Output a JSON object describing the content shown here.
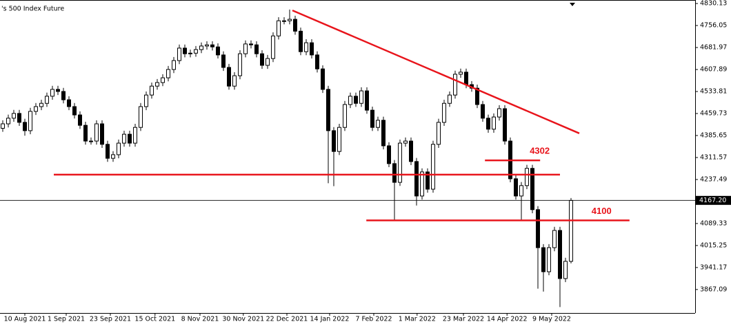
{
  "chart_data": {
    "type": "candlestick",
    "title": "'s 500 Index Future",
    "open": [
      4410,
      4425,
      4444,
      4460,
      4430,
      4402,
      4467,
      4483,
      4494,
      4518,
      4541,
      4534,
      4506,
      4483,
      4455,
      4420,
      4367,
      4367,
      4425,
      4356,
      4309,
      4321,
      4360,
      4390,
      4360,
      4413,
      4483,
      4522,
      4552,
      4564,
      4580,
      4608,
      4638,
      4680,
      4661,
      4663,
      4675,
      4687,
      4691,
      4684,
      4657,
      4615,
      4552,
      4587,
      4661,
      4694,
      4691,
      4661,
      4622,
      4645,
      4721,
      4772,
      4772,
      4777,
      4737,
      4668,
      4698,
      4657,
      4610,
      4541,
      4402,
      4332,
      4413,
      4490,
      4518,
      4494,
      4536,
      4471,
      4413,
      4437,
      4351,
      4291,
      4228,
      4360,
      4367,
      4298,
      4182,
      4263,
      4205,
      4356,
      4430,
      4494,
      4522,
      4592,
      4599,
      4557,
      4545,
      4490,
      4444,
      4407,
      4448,
      4476,
      4367,
      4240,
      4182,
      4217,
      4275,
      4136,
      4008,
      3927,
      4008,
      4066,
      3904,
      3962
    ],
    "high": [
      4437,
      4456,
      4472,
      4472,
      4442,
      4479,
      4495,
      4506,
      4530,
      4553,
      4553,
      4546,
      4518,
      4495,
      4467,
      4432,
      4379,
      4437,
      4437,
      4368,
      4333,
      4372,
      4402,
      4402,
      4425,
      4495,
      4534,
      4564,
      4576,
      4592,
      4620,
      4650,
      4692,
      4692,
      4675,
      4687,
      4699,
      4703,
      4703,
      4696,
      4669,
      4627,
      4599,
      4673,
      4706,
      4706,
      4703,
      4673,
      4657,
      4733,
      4784,
      4784,
      4810,
      4789,
      4749,
      4710,
      4710,
      4669,
      4622,
      4553,
      4414,
      4425,
      4502,
      4530,
      4530,
      4548,
      4548,
      4483,
      4449,
      4449,
      4363,
      4303,
      4372,
      4379,
      4379,
      4310,
      4275,
      4275,
      4368,
      4442,
      4506,
      4534,
      4604,
      4611,
      4611,
      4569,
      4557,
      4502,
      4456,
      4460,
      4488,
      4488,
      4379,
      4252,
      4229,
      4287,
      4287,
      4148,
      4020,
      4020,
      4078,
      4078,
      3974,
      4175
    ],
    "low": [
      4398,
      4413,
      4432,
      4418,
      4385,
      4390,
      4455,
      4471,
      4482,
      4506,
      4522,
      4494,
      4471,
      4443,
      4408,
      4355,
      4355,
      4355,
      4344,
      4297,
      4297,
      4309,
      4348,
      4348,
      4348,
      4401,
      4471,
      4510,
      4540,
      4552,
      4568,
      4596,
      4626,
      4649,
      4649,
      4651,
      4663,
      4675,
      4672,
      4645,
      4603,
      4540,
      4540,
      4575,
      4649,
      4679,
      4649,
      4610,
      4610,
      4633,
      4709,
      4760,
      4760,
      4725,
      4656,
      4656,
      4645,
      4598,
      4529,
      4225,
      4215,
      4320,
      4401,
      4478,
      4482,
      4482,
      4459,
      4401,
      4401,
      4339,
      4279,
      4100,
      4216,
      4348,
      4286,
      4150,
      4170,
      4193,
      4193,
      4344,
      4418,
      4482,
      4510,
      4580,
      4545,
      4533,
      4478,
      4432,
      4395,
      4395,
      4436,
      4355,
      4228,
      4170,
      4100,
      4205,
      4124,
      3870,
      3860,
      3915,
      3996,
      3808,
      3892,
      3955
    ],
    "close": [
      4425,
      4444,
      4460,
      4430,
      4402,
      4467,
      4483,
      4494,
      4518,
      4541,
      4534,
      4506,
      4483,
      4455,
      4420,
      4367,
      4367,
      4425,
      4356,
      4309,
      4321,
      4360,
      4390,
      4360,
      4413,
      4483,
      4522,
      4552,
      4564,
      4580,
      4608,
      4638,
      4680,
      4661,
      4663,
      4675,
      4687,
      4691,
      4684,
      4657,
      4615,
      4552,
      4587,
      4661,
      4694,
      4691,
      4661,
      4622,
      4645,
      4721,
      4772,
      4772,
      4777,
      4737,
      4668,
      4698,
      4657,
      4610,
      4541,
      4402,
      4332,
      4413,
      4490,
      4518,
      4494,
      4536,
      4471,
      4413,
      4437,
      4351,
      4291,
      4228,
      4360,
      4367,
      4298,
      4182,
      4263,
      4205,
      4356,
      4430,
      4494,
      4522,
      4592,
      4599,
      4557,
      4545,
      4490,
      4444,
      4407,
      4448,
      4476,
      4367,
      4240,
      4182,
      4217,
      4275,
      4136,
      4008,
      3927,
      4008,
      4066,
      3904,
      3962,
      4167
    ],
    "up_color": "#ffffff",
    "down_color": "#000000",
    "xlim": [
      -0.5,
      125.5
    ],
    "xticks": [
      {
        "value": 4,
        "label": "10 Aug 2021"
      },
      {
        "value": 11.5,
        "label": "1 Sep 2021"
      },
      {
        "value": 19.5,
        "label": "23 Sep 2021"
      },
      {
        "value": 27.6,
        "label": "15 Oct 2021"
      },
      {
        "value": 35.75,
        "label": "8 Nov 2021"
      },
      {
        "value": 43.6,
        "label": "30 Nov 2021"
      },
      {
        "value": 51.5,
        "label": "22 Dec 2021"
      },
      {
        "value": 59.25,
        "label": "14 Jan 2022"
      },
      {
        "value": 67.25,
        "label": "7 Feb 2022"
      },
      {
        "value": 75.1,
        "label": "1 Mar 2022"
      },
      {
        "value": 83.5,
        "label": "23 Mar 2022"
      },
      {
        "value": 91.4,
        "label": "14 Apr 2022"
      },
      {
        "value": 99.5,
        "label": "9 May 2022"
      }
    ],
    "ylim": [
      3788,
      4842
    ],
    "yticks": [
      4830.13,
      4756.05,
      4681.97,
      4607.89,
      4533.81,
      4459.73,
      4385.65,
      4311.57,
      4237.49,
      4089.33,
      4015.25,
      3941.17,
      3867.09
    ],
    "current_price": {
      "value": 4167.2,
      "label": "4167.20"
    },
    "lines": [
      {
        "x": [
          52.5,
          104.5
        ],
        "y": [
          4807,
          4393
        ],
        "color": "#e8141b"
      },
      {
        "x": [
          9.25,
          101
        ],
        "y": [
          4254,
          4254
        ],
        "color": "#e8141b"
      },
      {
        "x": [
          87.4,
          97.4
        ],
        "y": [
          4302,
          4302
        ],
        "color": "#e8141b",
        "label": "4302"
      },
      {
        "x": [
          65.9,
          113.6
        ],
        "y": [
          4100,
          4100
        ],
        "color": "#e8141b",
        "label": "4100"
      }
    ]
  }
}
